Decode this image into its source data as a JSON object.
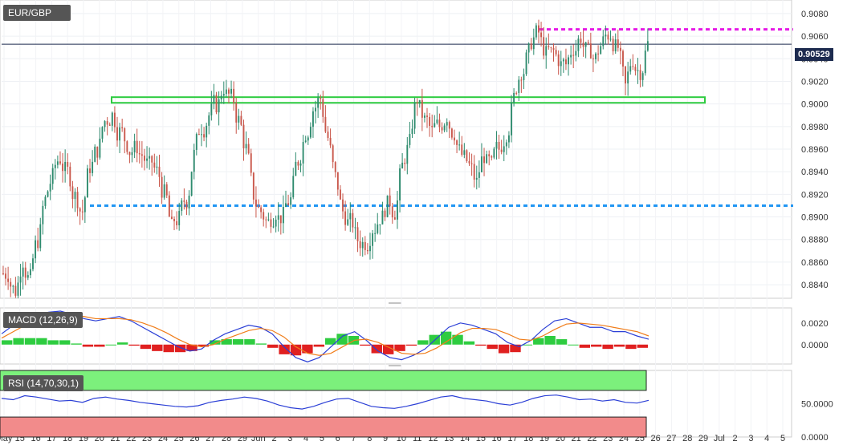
{
  "chart_data": [
    {
      "type": "candlestick",
      "symbol": "EUR/GBP",
      "last_price": "0.90529",
      "ylim": [
        0.8828,
        0.9092
      ],
      "y_ticks": [
        "0.9080",
        "0.9060",
        "0.9040",
        "0.9020",
        "0.9000",
        "0.8980",
        "0.8960",
        "0.8940",
        "0.8920",
        "0.8900",
        "0.8880",
        "0.8860",
        "0.8840"
      ],
      "x_ticks": [
        "May",
        "15",
        "16",
        "17",
        "18",
        "19",
        "20",
        "21",
        "22",
        "23",
        "24",
        "25",
        "26",
        "27",
        "28",
        "29",
        "Jun",
        "2",
        "3",
        "4",
        "5",
        "6",
        "7",
        "8",
        "9",
        "10",
        "11",
        "12",
        "13",
        "14",
        "15",
        "16",
        "17",
        "18",
        "19",
        "20",
        "21",
        "22",
        "23",
        "24",
        "25",
        "26",
        "27",
        "28",
        "29",
        "Jul",
        "2",
        "3",
        "4",
        "5"
      ],
      "levels": [
        {
          "name": "resistance_dotted",
          "value": 0.9066,
          "color": "#e619e6"
        },
        {
          "name": "support_dotted",
          "value": 0.891,
          "color": "#2196f3"
        },
        {
          "name": "zone_band",
          "low": 0.9001,
          "high": 0.9006,
          "color": "#2ecc40"
        }
      ],
      "close_path": [
        0.885,
        0.8835,
        0.8862,
        0.8845,
        0.888,
        0.8915,
        0.8935,
        0.8952,
        0.894,
        0.8918,
        0.8905,
        0.8945,
        0.896,
        0.8985,
        0.899,
        0.8975,
        0.8965,
        0.896,
        0.8955,
        0.8945,
        0.894,
        0.892,
        0.889,
        0.8898,
        0.8915,
        0.8955,
        0.898,
        0.899,
        0.9,
        0.9015,
        0.9005,
        0.8985,
        0.896,
        0.892,
        0.8905,
        0.8895,
        0.8905,
        0.89,
        0.8915,
        0.895,
        0.8975,
        0.8995,
        0.9005,
        0.897,
        0.8935,
        0.8905,
        0.8895,
        0.888,
        0.8878,
        0.889,
        0.89,
        0.891,
        0.8905,
        0.8945,
        0.8965,
        0.9005,
        0.8985,
        0.8975,
        0.898,
        0.899,
        0.8975,
        0.8955,
        0.8945,
        0.893,
        0.8955,
        0.8945,
        0.896,
        0.8975,
        0.9005,
        0.903,
        0.9045,
        0.9062,
        0.905,
        0.9045,
        0.904,
        0.9035,
        0.905,
        0.906,
        0.9045,
        0.904,
        0.9055,
        0.9062,
        0.905,
        0.9015,
        0.904,
        0.903,
        0.9053
      ]
    },
    {
      "type": "macd",
      "label": "MACD (12,26,9)",
      "y_ticks": [
        "0.0020",
        "0.0000"
      ],
      "ylim": [
        -0.0018,
        0.0034
      ],
      "macd_line": [
        0.001,
        0.0018,
        0.0024,
        0.0028,
        0.003,
        0.0031,
        0.0028,
        0.0024,
        0.0022,
        0.0024,
        0.0026,
        0.0022,
        0.0016,
        0.001,
        0.0004,
        -0.0002,
        -0.0006,
        -0.0004,
        0.0004,
        0.001,
        0.0014,
        0.0018,
        0.0016,
        0.001,
        -0.0002,
        -0.0012,
        -0.0016,
        -0.0012,
        -0.0002,
        0.0008,
        0.0012,
        0.0004,
        -0.0006,
        -0.0012,
        -0.0014,
        -0.001,
        -0.0004,
        0.0006,
        0.0016,
        0.002,
        0.0018,
        0.0014,
        0.001,
        0.0002,
        -0.0002,
        0.0004,
        0.0014,
        0.0022,
        0.0024,
        0.002,
        0.0016,
        0.0016,
        0.0012,
        0.0012,
        0.0008,
        0.0005
      ],
      "signal_line": [
        0.0006,
        0.0012,
        0.0018,
        0.0022,
        0.0026,
        0.0027,
        0.0027,
        0.0026,
        0.0024,
        0.0024,
        0.0024,
        0.0023,
        0.002,
        0.0016,
        0.0011,
        0.0005,
        0.0,
        -0.0002,
        0.0,
        0.0005,
        0.0009,
        0.0013,
        0.0015,
        0.0013,
        0.0007,
        -0.0002,
        -0.0008,
        -0.001,
        -0.0008,
        -0.0002,
        0.0004,
        0.0005,
        0.0002,
        -0.0003,
        -0.0008,
        -0.0009,
        -0.0008,
        -0.0003,
        0.0004,
        0.0011,
        0.0015,
        0.0015,
        0.0014,
        0.001,
        0.0005,
        0.0004,
        0.0008,
        0.0014,
        0.0019,
        0.002,
        0.0019,
        0.0018,
        0.0016,
        0.0014,
        0.0012,
        0.0008
      ],
      "histogram": [
        0.0004,
        0.0006,
        0.0006,
        0.0006,
        0.0004,
        0.0004,
        0.0001,
        -0.0002,
        -0.0002,
        0.0,
        0.0002,
        -0.0001,
        -0.0004,
        -0.0006,
        -0.0007,
        -0.0007,
        -0.0006,
        -0.0002,
        0.0004,
        0.0005,
        0.0005,
        0.0005,
        0.0001,
        -0.0003,
        -0.0009,
        -0.001,
        -0.0008,
        -0.0002,
        0.0006,
        0.001,
        0.0008,
        -0.0001,
        -0.0008,
        -0.0009,
        -0.0006,
        -0.0001,
        0.0004,
        0.0009,
        0.0012,
        0.0009,
        0.0003,
        -0.0001,
        -0.0004,
        -0.0008,
        -0.0007,
        0.0,
        0.0006,
        0.0008,
        0.0005,
        0.0,
        -0.0003,
        -0.0002,
        -0.0004,
        -0.0002,
        -0.0004,
        -0.0003
      ]
    },
    {
      "type": "rsi",
      "label": "RSI (14,70,30,1)",
      "y_ticks": [
        "50.0000",
        "0.0000"
      ],
      "ylim": [
        0,
        100
      ],
      "overbought": 70,
      "oversold": 30,
      "values": [
        58,
        56,
        62,
        60,
        57,
        54,
        55,
        52,
        58,
        60,
        57,
        55,
        52,
        50,
        48,
        46,
        45,
        47,
        52,
        55,
        57,
        60,
        58,
        54,
        48,
        44,
        42,
        46,
        52,
        57,
        58,
        52,
        46,
        44,
        43,
        46,
        50,
        55,
        60,
        62,
        58,
        56,
        54,
        50,
        48,
        52,
        58,
        62,
        63,
        60,
        56,
        57,
        54,
        56,
        52,
        51,
        55
      ]
    }
  ]
}
